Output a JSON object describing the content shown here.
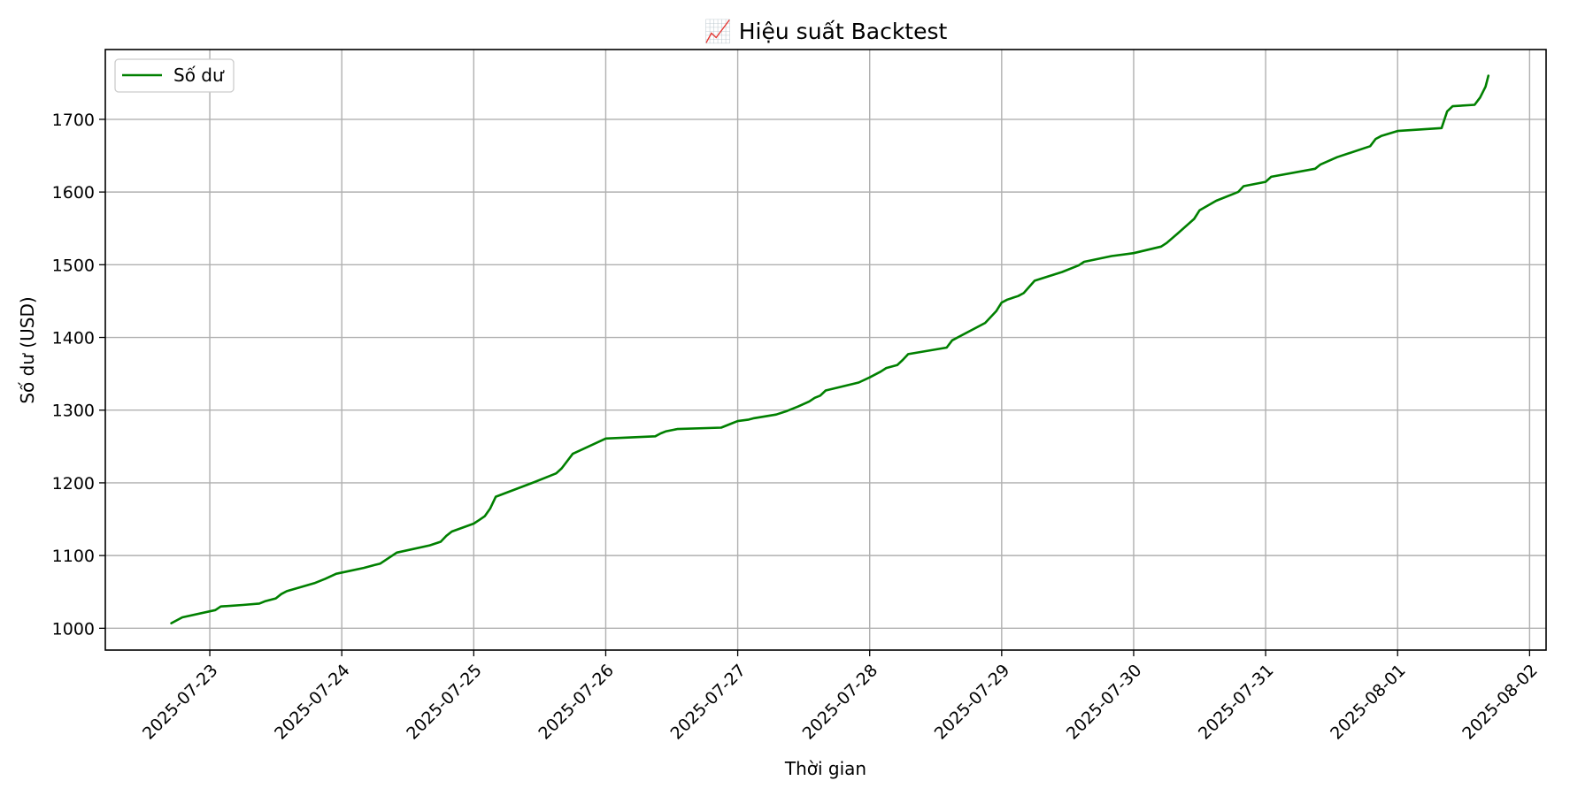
{
  "chart_data": {
    "type": "line",
    "title": "📈 Hiệu suất Backtest",
    "xlabel": "Thời gian",
    "ylabel": "Số dư (USD)",
    "x_range": [
      "2025-07-22T05:00",
      "2025-08-02T03:00"
    ],
    "ylim": [
      970,
      1796
    ],
    "x_ticks": [
      "2025-07-23",
      "2025-07-24",
      "2025-07-25",
      "2025-07-26",
      "2025-07-27",
      "2025-07-28",
      "2025-07-29",
      "2025-07-30",
      "2025-07-31",
      "2025-08-01",
      "2025-08-02"
    ],
    "y_ticks": [
      1000,
      1100,
      1200,
      1300,
      1400,
      1500,
      1600,
      1700
    ],
    "grid": true,
    "legend": {
      "position": "top-left"
    },
    "series": [
      {
        "name": "Số dư",
        "color": "#008000",
        "x": [
          "2025-07-22T17:00",
          "2025-07-22T19:00",
          "2025-07-23T01:00",
          "2025-07-23T02:00",
          "2025-07-23T06:00",
          "2025-07-23T09:00",
          "2025-07-23T10:00",
          "2025-07-23T12:00",
          "2025-07-23T13:00",
          "2025-07-23T14:00",
          "2025-07-23T19:00",
          "2025-07-23T21:00",
          "2025-07-23T23:00",
          "2025-07-24T04:00",
          "2025-07-24T06:00",
          "2025-07-24T07:00",
          "2025-07-24T10:00",
          "2025-07-24T16:00",
          "2025-07-24T18:00",
          "2025-07-24T19:00",
          "2025-07-24T20:00",
          "2025-07-24T24:00",
          "2025-07-25T01:00",
          "2025-07-25T02:00",
          "2025-07-25T03:00",
          "2025-07-25T04:00",
          "2025-07-25T11:00",
          "2025-07-25T14:00",
          "2025-07-25T15:00",
          "2025-07-25T16:00",
          "2025-07-25T18:00",
          "2025-07-26T00:00",
          "2025-07-26T09:00",
          "2025-07-26T10:00",
          "2025-07-26T11:00",
          "2025-07-26T13:00",
          "2025-07-26T21:00",
          "2025-07-26T23:00",
          "2025-07-27T00:00",
          "2025-07-27T02:00",
          "2025-07-27T03:00",
          "2025-07-27T07:00",
          "2025-07-27T09:00",
          "2025-07-27T11:00",
          "2025-07-27T13:00",
          "2025-07-27T14:00",
          "2025-07-27T15:00",
          "2025-07-27T16:00",
          "2025-07-27T22:00",
          "2025-07-28T00:00",
          "2025-07-28T02:00",
          "2025-07-28T03:00",
          "2025-07-28T05:00",
          "2025-07-28T06:00",
          "2025-07-28T07:00",
          "2025-07-28T14:00",
          "2025-07-28T15:00",
          "2025-07-28T21:00",
          "2025-07-28T23:00",
          "2025-07-29T00:00",
          "2025-07-29T01:00",
          "2025-07-29T03:00",
          "2025-07-29T04:00",
          "2025-07-29T06:00",
          "2025-07-29T11:00",
          "2025-07-29T14:00",
          "2025-07-29T15:00",
          "2025-07-29T20:00",
          "2025-07-29T24:00",
          "2025-07-30T05:00",
          "2025-07-30T06:00",
          "2025-07-30T08:00",
          "2025-07-30T11:00",
          "2025-07-30T12:00",
          "2025-07-30T15:00",
          "2025-07-30T19:00",
          "2025-07-30T20:00",
          "2025-07-31T00:00",
          "2025-07-31T01:00",
          "2025-07-31T09:00",
          "2025-07-31T10:00",
          "2025-07-31T13:00",
          "2025-07-31T19:00",
          "2025-07-31T20:00",
          "2025-07-31T21:00",
          "2025-08-01T00:00",
          "2025-08-01T08:00",
          "2025-08-01T09:00",
          "2025-08-01T10:00",
          "2025-08-01T14:00",
          "2025-08-01T15:00",
          "2025-08-01T16:00",
          "2025-08-01T16:30"
        ],
        "y": [
          1007,
          1015,
          1025,
          1030,
          1032,
          1034,
          1037,
          1041,
          1047,
          1051,
          1062,
          1068,
          1075,
          1083,
          1087,
          1089,
          1104,
          1114,
          1119,
          1127,
          1133,
          1144,
          1149,
          1154,
          1165,
          1181,
          1201,
          1210,
          1213,
          1220,
          1240,
          1261,
          1264,
          1268,
          1271,
          1274,
          1276,
          1282,
          1285,
          1287,
          1289,
          1294,
          1299,
          1305,
          1312,
          1317,
          1320,
          1327,
          1338,
          1345,
          1353,
          1358,
          1362,
          1369,
          1377,
          1386,
          1396,
          1420,
          1436,
          1448,
          1452,
          1457,
          1461,
          1478,
          1490,
          1499,
          1504,
          1512,
          1516,
          1525,
          1530,
          1543,
          1563,
          1575,
          1588,
          1600,
          1608,
          1614,
          1621,
          1632,
          1638,
          1648,
          1663,
          1673,
          1677,
          1684,
          1688,
          1711,
          1718,
          1720,
          1730,
          1745,
          1760
        ]
      }
    ]
  }
}
